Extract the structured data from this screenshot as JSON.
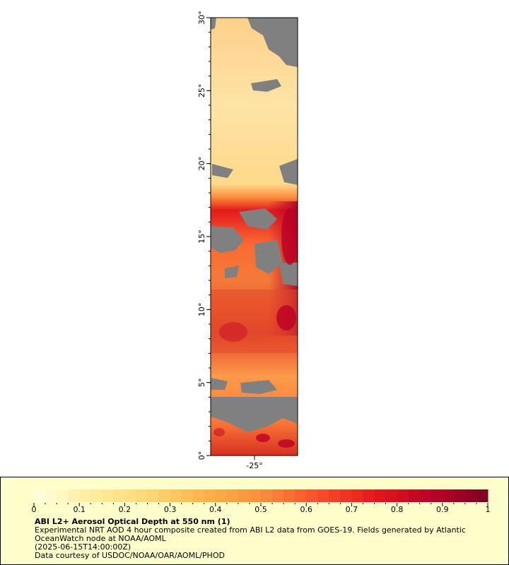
{
  "map": {
    "lat_ticks": [
      "0°",
      "5°",
      "10°",
      "15°",
      "20°",
      "25°",
      "30°"
    ],
    "lon_ticks": [
      "-25°"
    ],
    "missing_color": "#808080",
    "colormap": [
      "#ffffe0",
      "#ffeda0",
      "#fed976",
      "#feb24c",
      "#fd8d3c",
      "#fc4e2a",
      "#e31a1c",
      "#bd0026",
      "#800026"
    ]
  },
  "legend": {
    "title": "ABI L2+ Aerosol Optical Depth at 550 nm (1)",
    "line1": "Experimental NRT AOD 4 hour composite created from ABI L2 data from GOES-19. Fields generated by Atlantic",
    "line2": "OceanWatch node at NOAA/AOML",
    "line3": "(2025-06-15T14:00:00Z)",
    "line4": "Data courtesy of USDOC/NOAA/OAR/AOML/PHOD",
    "scale_labels": [
      "0",
      "0.1",
      "0.2",
      "0.3",
      "0.4",
      "0.5",
      "0.6",
      "0.7",
      "0.8",
      "0.9",
      "1"
    ],
    "range": [
      0,
      1
    ]
  }
}
